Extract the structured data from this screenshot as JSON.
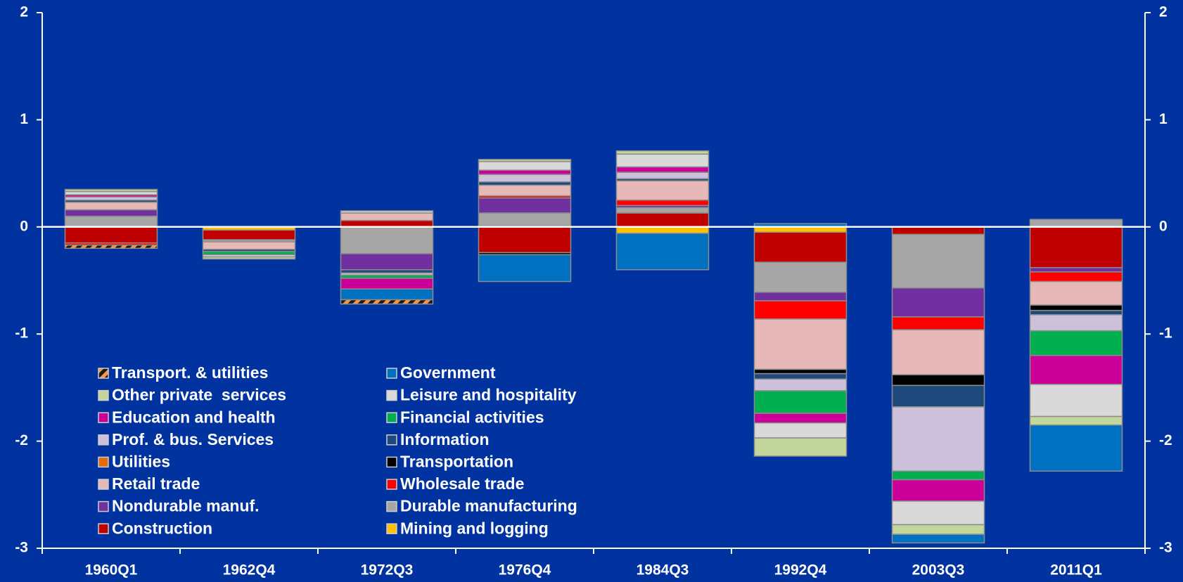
{
  "chart_data": {
    "type": "stacked_bar",
    "categories": [
      "1960Q1",
      "1962Q4",
      "1972Q3",
      "1976Q4",
      "1984Q3",
      "1992Q4",
      "2003Q3",
      "2011Q1"
    ],
    "series": [
      {
        "name": "Transport. & utilities",
        "color": "#f79646",
        "hatched": true,
        "values": [
          -0.03,
          0,
          -0.04,
          0,
          0,
          0,
          0,
          0
        ]
      },
      {
        "name": "Government",
        "color": "#0070c0",
        "values": [
          0,
          0,
          -0.1,
          -0.25,
          -0.34,
          0.03,
          -0.08,
          -0.43
        ]
      },
      {
        "name": "Other private  services",
        "color": "#c3d69b",
        "values": [
          0.02,
          -0.02,
          0,
          0.02,
          0.03,
          -0.17,
          -0.09,
          -0.08
        ]
      },
      {
        "name": "Leisure and hospitality",
        "color": "#d9d9d9",
        "values": [
          0.03,
          -0.02,
          0.02,
          0.08,
          0.12,
          -0.14,
          -0.22,
          -0.3
        ]
      },
      {
        "name": "Education and health",
        "color": "#cc0099",
        "values": [
          0.02,
          0,
          -0.1,
          0.04,
          0.05,
          -0.09,
          -0.2,
          -0.27
        ]
      },
      {
        "name": "Financial activities",
        "color": "#00b050",
        "values": [
          0,
          -0.03,
          -0.03,
          0,
          0,
          -0.21,
          -0.08,
          -0.23
        ]
      },
      {
        "name": "Prof. & bus. Services",
        "color": "#ccc0da",
        "values": [
          0.03,
          0,
          -0.02,
          0.07,
          0.06,
          -0.11,
          -0.6,
          -0.15
        ]
      },
      {
        "name": "Information",
        "color": "#1f497d",
        "values": [
          0.02,
          -0.02,
          -0.03,
          0.03,
          0.02,
          -0.05,
          -0.2,
          -0.04
        ]
      },
      {
        "name": "Utilities",
        "color": "#e46c0a",
        "values": [
          0,
          0,
          0,
          0,
          0,
          0,
          0,
          0
        ]
      },
      {
        "name": "Transportation",
        "color": "#000000",
        "values": [
          0,
          0,
          0,
          -0.02,
          0,
          -0.04,
          -0.1,
          -0.05
        ]
      },
      {
        "name": "Retail trade",
        "color": "#e6b9b8",
        "values": [
          0.07,
          -0.07,
          0.07,
          0.1,
          0.18,
          -0.47,
          -0.42,
          -0.22
        ]
      },
      {
        "name": "Wholesale trade",
        "color": "#ff0000",
        "values": [
          -0.02,
          0,
          0,
          0.02,
          0.05,
          -0.17,
          -0.12,
          -0.09
        ]
      },
      {
        "name": "Nondurable manuf.",
        "color": "#7030a0",
        "values": [
          0.06,
          0,
          -0.15,
          0.14,
          0.02,
          -0.08,
          -0.27,
          -0.04
        ]
      },
      {
        "name": "Durable manufacturing",
        "color": "#a6a6a6",
        "values": [
          0.1,
          -0.02,
          -0.25,
          0.12,
          0.05,
          -0.28,
          -0.5,
          0.07
        ]
      },
      {
        "name": "Construction",
        "color": "#c00000",
        "values": [
          -0.15,
          -0.09,
          0.06,
          -0.24,
          0.13,
          -0.28,
          -0.07,
          -0.38
        ]
      },
      {
        "name": "Mining and logging",
        "color": "#ffc000",
        "values": [
          0,
          -0.03,
          0,
          0.01,
          -0.06,
          -0.05,
          0,
          0
        ]
      }
    ],
    "ylim": [
      -3,
      2
    ],
    "yticks": [
      -3,
      -2,
      -1,
      0,
      1,
      2
    ],
    "right_axis": true
  }
}
